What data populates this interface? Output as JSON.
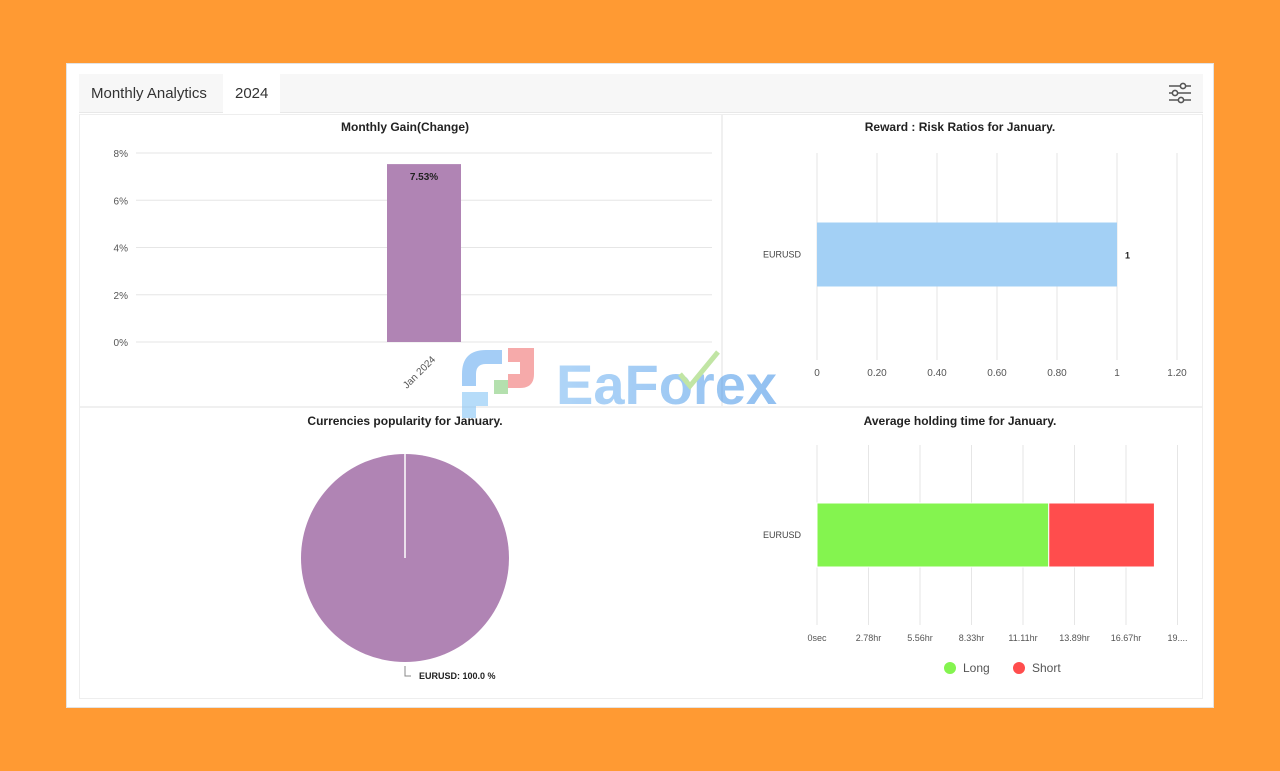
{
  "header": {
    "title_tab": "Monthly Analytics",
    "year_tab": "2024",
    "settings_icon": "sliders-icon"
  },
  "watermark": {
    "text": "EaForex"
  },
  "colors": {
    "background": "#FF9A33",
    "purple": "#B084B4",
    "blue": "#A3D0F5",
    "green": "#84F44F",
    "red": "#FF4D4D"
  },
  "chart_data": [
    {
      "type": "bar",
      "title": "Monthly Gain(Change)",
      "categories": [
        "Jan 2024"
      ],
      "values": [
        7.53
      ],
      "data_labels": [
        "7.53%"
      ],
      "y_ticks": [
        "0%",
        "2%",
        "4%",
        "6%",
        "8%"
      ],
      "ylim": [
        0,
        8
      ],
      "grid": true
    },
    {
      "type": "bar",
      "orientation": "horizontal",
      "title": "Reward : Risk Ratios for January.",
      "categories": [
        "EURUSD"
      ],
      "values": [
        1
      ],
      "data_labels": [
        "1"
      ],
      "x_ticks": [
        "0",
        "0.20",
        "0.40",
        "0.60",
        "0.80",
        "1",
        "1.20"
      ],
      "xlim": [
        0,
        1.2
      ],
      "grid": true
    },
    {
      "type": "pie",
      "title": "Currencies popularity for January.",
      "slices": [
        {
          "label": "EURUSD",
          "value": 100.0,
          "data_label": "EURUSD: 100.0 %"
        }
      ]
    },
    {
      "type": "bar",
      "orientation": "horizontal",
      "stacked": true,
      "title": "Average holding time for January.",
      "categories": [
        "EURUSD"
      ],
      "series": [
        {
          "name": "Long",
          "values": [
            12.5
          ]
        },
        {
          "name": "Short",
          "values": [
            5.7
          ]
        }
      ],
      "x_ticks": [
        "0sec",
        "2.78hr",
        "5.56hr",
        "8.33hr",
        "11.11hr",
        "13.89hr",
        "16.67hr",
        "19...."
      ],
      "x_tick_step_hr": 2.7778,
      "xlim": [
        0,
        19.44
      ],
      "legend": "bottom",
      "grid": true
    }
  ]
}
